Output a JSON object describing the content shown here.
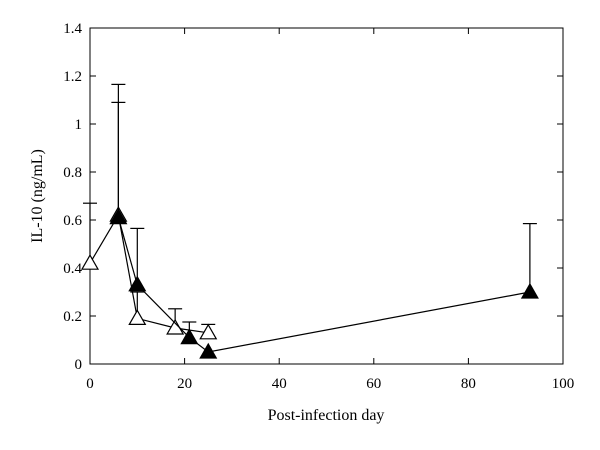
{
  "chart_data": {
    "type": "line",
    "title": "",
    "xlabel": "Post-infection day",
    "ylabel": "IL-10 (ng/mL)",
    "xlim": [
      0,
      100
    ],
    "ylim": [
      0,
      1.4
    ],
    "xticks": [
      0,
      20,
      40,
      60,
      80,
      100
    ],
    "yticks": [
      0,
      0.2,
      0.4,
      0.6,
      0.8,
      1,
      1.2,
      1.4
    ],
    "xtick_labels": [
      "0",
      "20",
      "40",
      "60",
      "80",
      "100"
    ],
    "ytick_labels": [
      "0",
      "0.2",
      "0.4",
      "0.6",
      "0.8",
      "1",
      "1.2",
      "1.4"
    ],
    "grid": false,
    "legend": "none",
    "series": [
      {
        "marker": "open-triangle",
        "x": [
          0,
          6,
          10,
          18,
          25
        ],
        "y": [
          0.42,
          0.62,
          0.19,
          0.15,
          0.13
        ],
        "err_upper": [
          0.67,
          1.09,
          0.3,
          0.23,
          0.165
        ]
      },
      {
        "marker": "filled-triangle",
        "x": [
          6,
          10,
          21,
          25,
          93
        ],
        "y": [
          0.61,
          0.33,
          0.11,
          0.05,
          0.3
        ],
        "err_upper": [
          1.165,
          0.565,
          0.175,
          null,
          0.585
        ]
      }
    ]
  }
}
